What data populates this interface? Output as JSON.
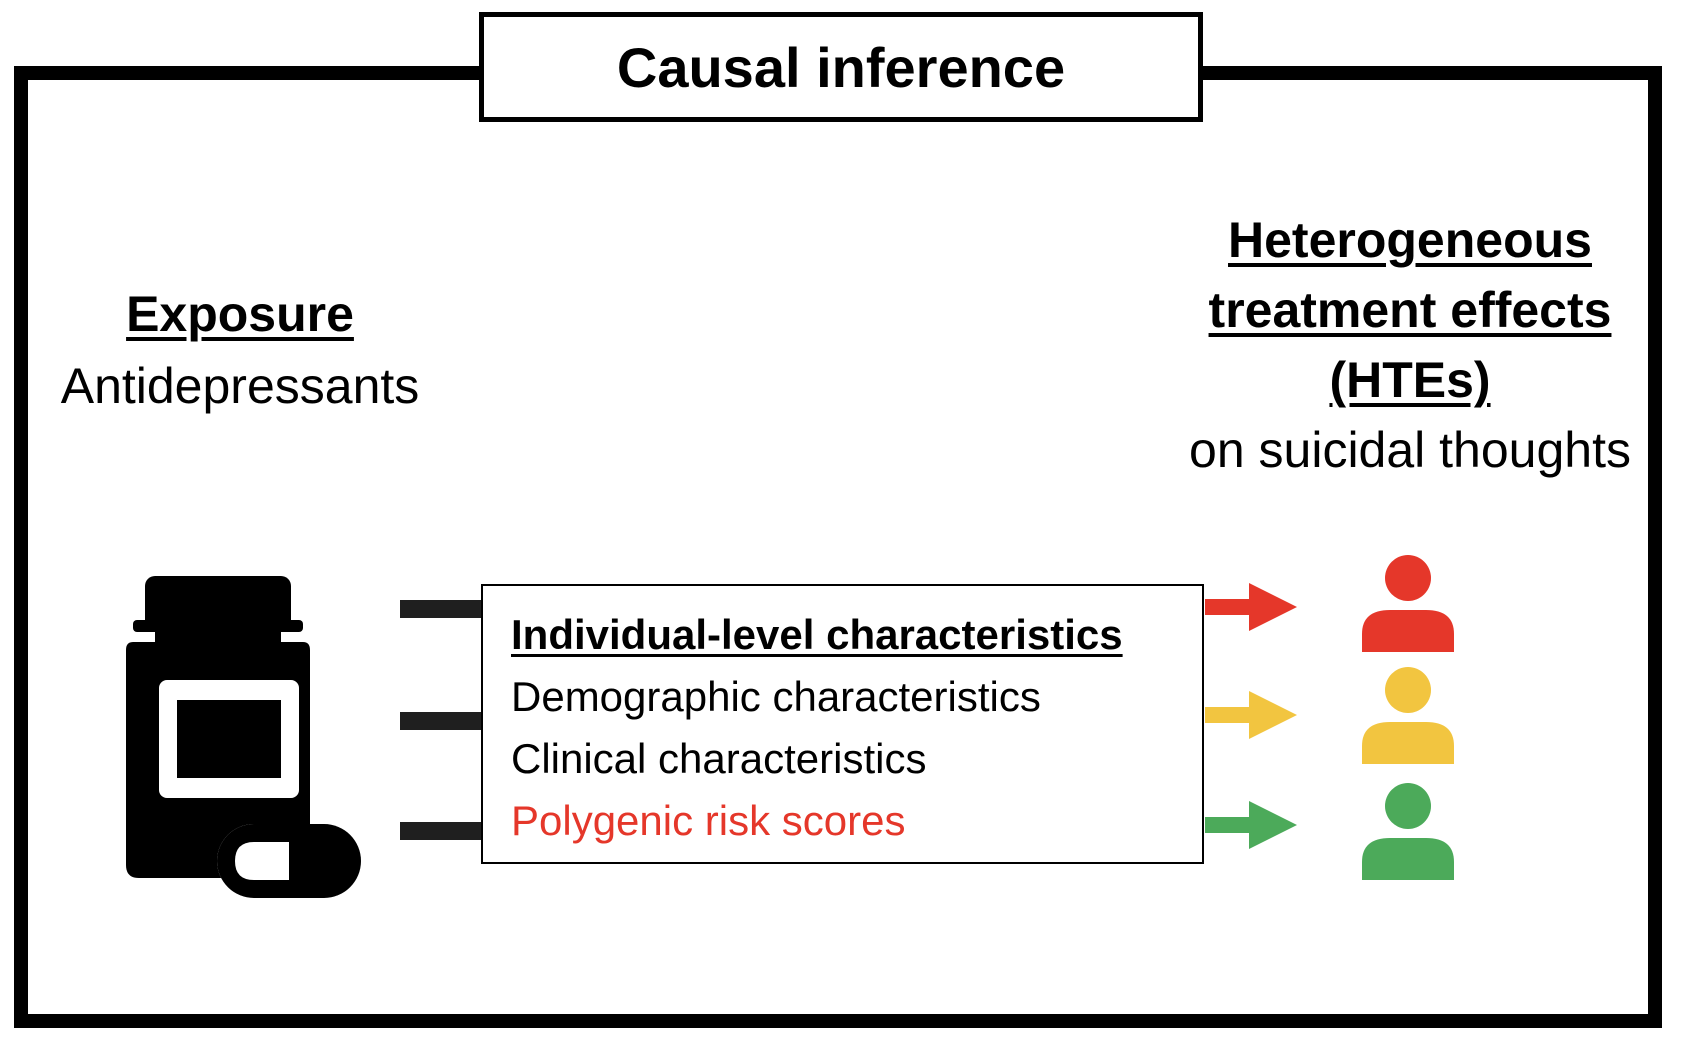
{
  "title": "Causal inference",
  "exposure": {
    "heading": "Exposure",
    "subtitle": "Antidepressants"
  },
  "outcome": {
    "heading_lines": [
      "Heterogeneous",
      "treatment effects",
      "(HTEs)"
    ],
    "subtitle": "on suicidal thoughts"
  },
  "characteristics": {
    "heading": "Individual-level characteristics",
    "items": [
      "Demographic characteristics",
      "Clinical characteristics",
      "Polygenic risk scores"
    ]
  },
  "colors": {
    "highlight": "#e5372a",
    "effect_high": "#e5372a",
    "effect_medium": "#f2c540",
    "effect_low": "#4caa5a"
  },
  "icons": [
    "medicine-bottle-icon",
    "capsule-icon",
    "person-icon"
  ]
}
